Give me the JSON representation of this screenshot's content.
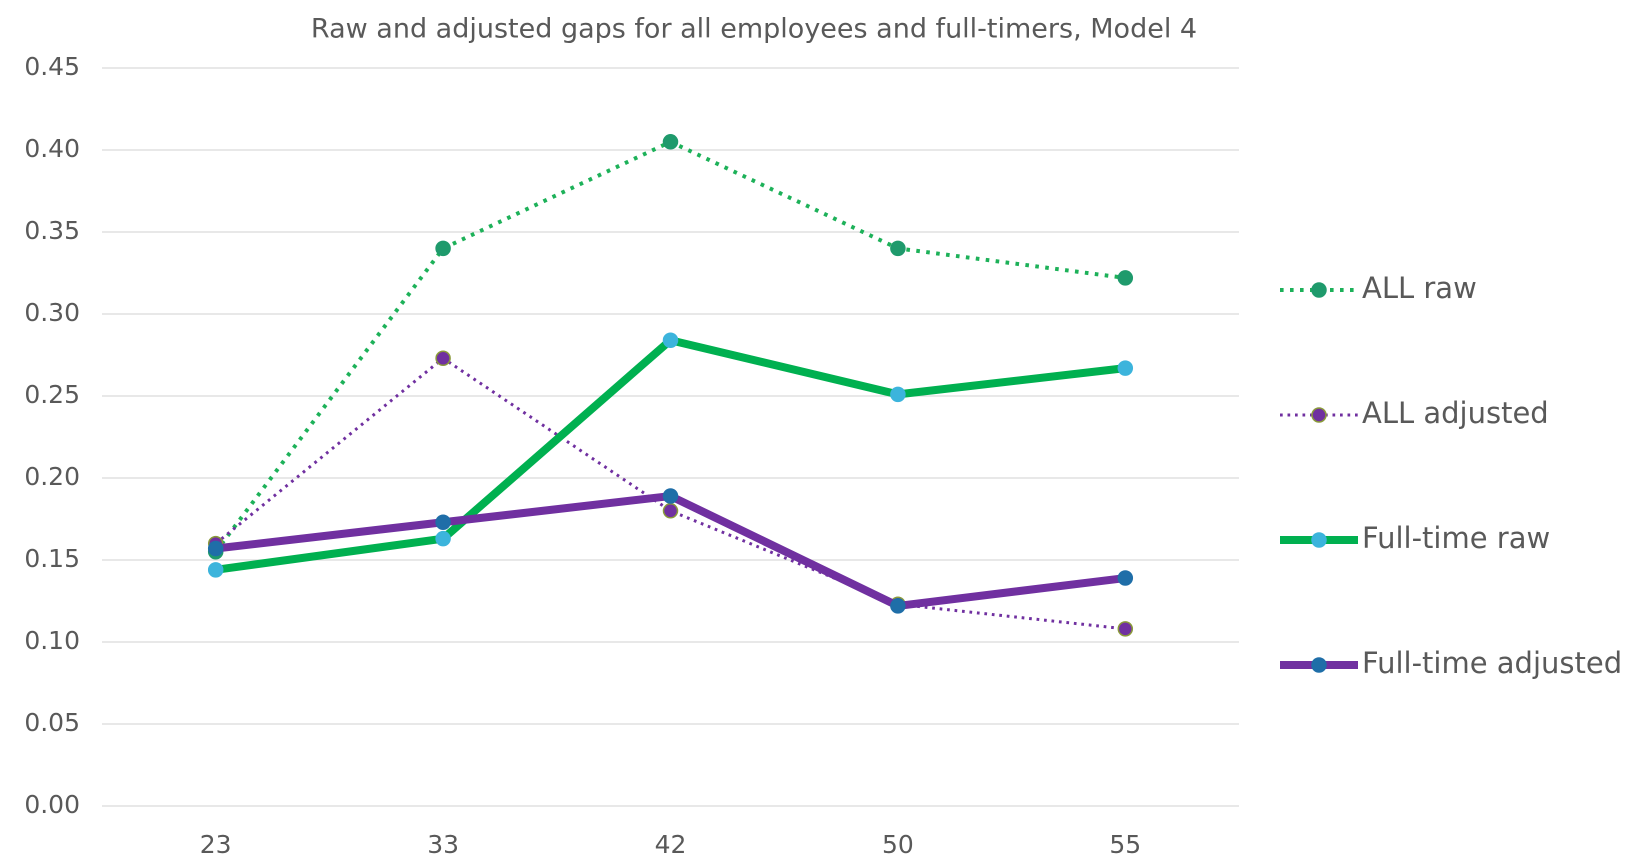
{
  "chart_data": {
    "type": "line",
    "title": "Raw and adjusted gaps for all employees and full-timers, Model 4",
    "categories": [
      "23",
      "33",
      "42",
      "50",
      "55"
    ],
    "series": [
      {
        "name": "ALL raw",
        "color": "#1db159",
        "marker_color": "#1f9a6c",
        "line_style": "dotted",
        "line_width": 4,
        "values": [
          0.155,
          0.34,
          0.405,
          0.34,
          0.322
        ]
      },
      {
        "name": "ALL adjusted",
        "color": "#7030a0",
        "marker_color": "#7030a0",
        "line_style": "dotted",
        "line_width": 3,
        "values": [
          0.16,
          0.273,
          0.18,
          0.123,
          0.108
        ]
      },
      {
        "name": "Full-time raw",
        "color": "#00b050",
        "marker_color": "#3cb4dc",
        "line_style": "solid",
        "line_width": 8,
        "values": [
          0.144,
          0.163,
          0.284,
          0.251,
          0.267
        ]
      },
      {
        "name": "Full-time adjusted",
        "color": "#7030a0",
        "marker_color": "#1f6ea8",
        "line_style": "solid",
        "line_width": 8,
        "values": [
          0.157,
          0.173,
          0.189,
          0.122,
          0.139
        ]
      }
    ],
    "ylim": [
      0,
      0.45
    ],
    "yticks": [
      {
        "value": 0,
        "label": "0.00"
      },
      {
        "value": 0.05,
        "label": "0.05"
      },
      {
        "value": 0.1,
        "label": "0.10"
      },
      {
        "value": 0.15,
        "label": "0.15"
      },
      {
        "value": 0.2,
        "label": "0.20"
      },
      {
        "value": 0.25,
        "label": "0.25"
      },
      {
        "value": 0.3,
        "label": "0.30"
      },
      {
        "value": 0.35,
        "label": "0.35"
      },
      {
        "value": 0.4,
        "label": "0.40"
      },
      {
        "value": 0.45,
        "label": "0.45"
      }
    ],
    "grid": true,
    "legend": "right"
  }
}
